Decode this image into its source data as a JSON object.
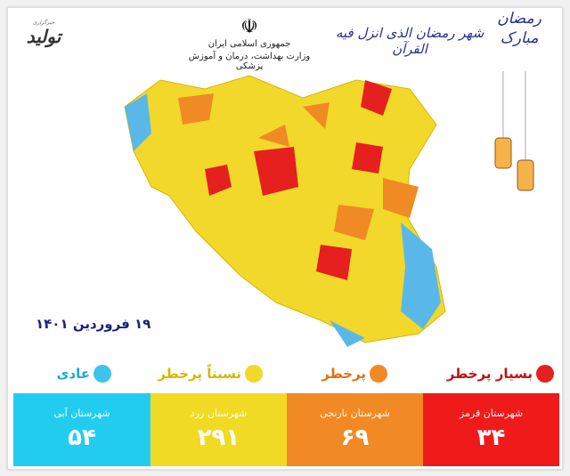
{
  "header": {
    "ministry_line1": "جمهوری اسلامی ایران",
    "ministry_line2": "وزارت بهداشت، درمان و آموزش پزشکی",
    "verse": "شهر رمضان الذی انزل فیه القرآن",
    "greeting": "رمضان مبارک",
    "logo_text": "تولید"
  },
  "date": "۱۹ فروردین ۱۴۰۱",
  "legend": [
    {
      "label": "بسیار پرخطر",
      "color": "#e5201e"
    },
    {
      "label": "پرخطر",
      "color": "#f08a24"
    },
    {
      "label": "نسبتاً پرخطر",
      "color": "#f2d82a"
    },
    {
      "label": "عادی",
      "color": "#3ec4ec"
    }
  ],
  "boxes": [
    {
      "label": "شهرستان قرمز",
      "value": "۳۴",
      "color": "#ef1b1b"
    },
    {
      "label": "شهرستان نارنجی",
      "value": "۶۹",
      "color": "#f18a25"
    },
    {
      "label": "شهرستان زرد",
      "value": "۲۹۱",
      "color": "#f1da24"
    },
    {
      "label": "شهرستان آبی",
      "value": "۵۴",
      "color": "#22ccee"
    }
  ]
}
